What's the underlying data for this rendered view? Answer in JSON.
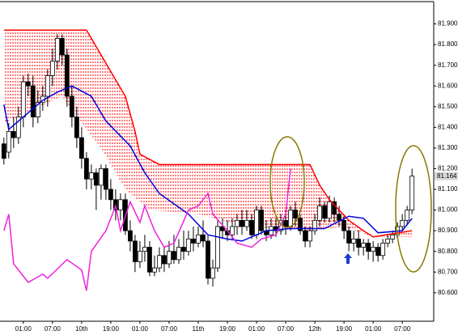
{
  "chart_data": {
    "type": "candlestick",
    "ylim": [
      80.47,
      82.0
    ],
    "yticks": [
      {
        "value": 80.6,
        "label": "80.600"
      },
      {
        "value": 80.7,
        "label": "80.700"
      },
      {
        "value": 80.8,
        "label": "80.800"
      },
      {
        "value": 80.9,
        "label": "80.900"
      },
      {
        "value": 81.0,
        "label": "81.000"
      },
      {
        "value": 81.1,
        "label": "81.100"
      },
      {
        "value": 81.2,
        "label": "81.200"
      },
      {
        "value": 81.3,
        "label": "81.300"
      },
      {
        "value": 81.4,
        "label": "81.400"
      },
      {
        "value": 81.5,
        "label": "81.500"
      },
      {
        "value": 81.6,
        "label": "81.600"
      },
      {
        "value": 81.7,
        "label": "81.700"
      },
      {
        "value": 81.8,
        "label": "81.800"
      },
      {
        "value": 81.9,
        "label": "81.900"
      }
    ],
    "xlim": [
      -0.8,
      88.3
    ],
    "xticks": [
      {
        "value": 4,
        "label": "01:00"
      },
      {
        "value": 10,
        "label": "07:00"
      },
      {
        "value": 16,
        "label": "10th"
      },
      {
        "value": 22,
        "label": "19:00"
      },
      {
        "value": 28,
        "label": "01:00"
      },
      {
        "value": 34,
        "label": "07:00"
      },
      {
        "value": 40,
        "label": "11th"
      },
      {
        "value": 46,
        "label": "19:00"
      },
      {
        "value": 52,
        "label": "01:00"
      },
      {
        "value": 58,
        "label": "07:00"
      },
      {
        "value": 64,
        "label": "12th"
      },
      {
        "value": 70,
        "label": "19:00"
      },
      {
        "value": 76,
        "label": "01:00"
      },
      {
        "value": 82,
        "label": "07:00"
      }
    ],
    "up_color": "#ffffff",
    "down_color": "#000000",
    "open": [
      81.32,
      81.28,
      81.38,
      81.35,
      81.45,
      81.62,
      81.6,
      81.45,
      81.52,
      81.55,
      81.65,
      81.72,
      81.83,
      81.75,
      81.55,
      81.45,
      81.35,
      81.25,
      81.15,
      81.18,
      81.12,
      81.2,
      81.1,
      81.05,
      81.0,
      81.05,
      80.9,
      80.85,
      80.75,
      80.8,
      80.82,
      80.7,
      80.72,
      80.78,
      80.74,
      80.8,
      80.76,
      80.82,
      80.8,
      80.86,
      80.84,
      80.88,
      80.85,
      80.67,
      80.72,
      80.92,
      80.9,
      80.88,
      80.92,
      80.95,
      80.92,
      80.95,
      80.88,
      81.0,
      80.9,
      80.88,
      80.92,
      80.9,
      80.95,
      80.92,
      81.0,
      80.96,
      80.9,
      80.85,
      80.9,
      80.95,
      81.02,
      80.96,
      81.04,
      80.98,
      80.95,
      80.9,
      80.84,
      80.86,
      80.82,
      80.84,
      80.8,
      80.82,
      80.78,
      80.84,
      80.86,
      80.88,
      80.92,
      80.95,
      81.0
    ],
    "high": [
      81.35,
      81.42,
      81.45,
      81.5,
      81.65,
      81.66,
      81.65,
      81.58,
      81.6,
      81.68,
      81.78,
      81.85,
      81.85,
      81.78,
      81.6,
      81.5,
      81.4,
      81.28,
      81.22,
      81.2,
      81.22,
      81.22,
      81.15,
      81.1,
      81.08,
      81.08,
      80.95,
      80.88,
      80.85,
      80.88,
      80.85,
      80.78,
      80.82,
      80.82,
      80.85,
      80.88,
      80.86,
      80.9,
      80.9,
      80.92,
      80.92,
      80.95,
      80.88,
      80.76,
      80.95,
      80.96,
      80.95,
      80.96,
      80.98,
      81.0,
      81.0,
      80.98,
      81.02,
      81.02,
      80.95,
      80.96,
      80.96,
      80.98,
      81.0,
      81.02,
      81.04,
      80.98,
      80.92,
      80.92,
      80.98,
      81.06,
      81.04,
      81.07,
      81.06,
      81.02,
      80.98,
      80.92,
      80.9,
      80.9,
      80.86,
      80.86,
      80.85,
      80.84,
      80.86,
      80.88,
      80.9,
      80.94,
      80.98,
      81.02,
      81.2
    ],
    "low": [
      81.22,
      81.25,
      81.3,
      81.32,
      81.4,
      81.55,
      81.4,
      81.42,
      81.48,
      81.5,
      81.6,
      81.68,
      81.7,
      81.5,
      81.4,
      81.3,
      81.2,
      81.1,
      81.1,
      81.0,
      81.05,
      81.05,
      81.0,
      80.95,
      80.95,
      80.88,
      80.8,
      80.7,
      80.72,
      80.75,
      80.68,
      80.68,
      80.7,
      80.7,
      80.72,
      80.74,
      80.74,
      80.76,
      80.78,
      80.8,
      80.82,
      80.82,
      80.64,
      80.63,
      80.7,
      80.86,
      80.85,
      80.86,
      80.88,
      80.88,
      80.9,
      80.86,
      80.86,
      80.88,
      80.85,
      80.86,
      80.87,
      80.88,
      80.88,
      80.9,
      80.92,
      80.88,
      80.82,
      80.82,
      80.88,
      80.92,
      80.94,
      80.94,
      80.94,
      80.92,
      80.86,
      80.8,
      80.8,
      80.78,
      80.78,
      80.76,
      80.75,
      80.75,
      80.76,
      80.82,
      80.84,
      80.86,
      80.9,
      80.93,
      80.98
    ],
    "close": [
      81.25,
      81.38,
      81.35,
      81.45,
      81.62,
      81.6,
      81.45,
      81.52,
      81.55,
      81.65,
      81.72,
      81.83,
      81.75,
      81.55,
      81.45,
      81.35,
      81.25,
      81.15,
      81.18,
      81.12,
      81.2,
      81.1,
      81.05,
      81.0,
      81.05,
      80.9,
      80.85,
      80.75,
      80.8,
      80.82,
      80.7,
      80.72,
      80.78,
      80.74,
      80.8,
      80.76,
      80.82,
      80.8,
      80.86,
      80.84,
      80.88,
      80.85,
      80.67,
      80.72,
      80.92,
      80.9,
      80.88,
      80.92,
      80.95,
      80.92,
      80.95,
      80.88,
      81.0,
      80.9,
      80.88,
      80.92,
      80.9,
      80.95,
      80.92,
      81.0,
      80.96,
      80.9,
      80.85,
      80.9,
      80.95,
      81.02,
      80.96,
      81.04,
      80.98,
      80.95,
      80.9,
      80.84,
      80.86,
      80.82,
      80.84,
      80.8,
      80.82,
      80.78,
      80.84,
      80.86,
      80.88,
      80.92,
      80.95,
      81.0,
      81.164
    ],
    "price_tag": "81.164",
    "lines": [
      {
        "color": "#ff0000",
        "x": [
          0,
          17,
          20,
          22,
          25,
          27,
          28,
          32,
          63,
          65,
          67,
          69,
          71,
          74,
          76,
          84
        ],
        "values": [
          81.87,
          81.87,
          81.75,
          81.67,
          81.55,
          81.38,
          81.27,
          81.22,
          81.22,
          81.12,
          81.05,
          81.0,
          80.95,
          80.9,
          80.87,
          80.9
        ]
      },
      {
        "color": "#0000dd",
        "x": [
          0,
          1,
          3,
          8,
          11,
          14,
          18,
          21,
          26,
          29,
          32,
          38,
          42,
          46,
          49,
          54,
          59,
          66,
          71,
          74,
          77,
          82,
          84
        ],
        "values": [
          81.51,
          81.39,
          81.43,
          81.53,
          81.57,
          81.6,
          81.55,
          81.43,
          81.31,
          81.18,
          81.08,
          80.98,
          80.88,
          80.86,
          80.85,
          80.9,
          80.91,
          80.91,
          80.97,
          80.96,
          80.89,
          80.9,
          80.96
        ]
      },
      {
        "color": "#ee22dd",
        "x": [
          0,
          1,
          2,
          5,
          8,
          9,
          13,
          16,
          17,
          18,
          21,
          23,
          24,
          26,
          28,
          29,
          31,
          33,
          35,
          38,
          40,
          42,
          43,
          46,
          48,
          51,
          53,
          56,
          58,
          59
        ],
        "values": [
          80.9,
          80.98,
          80.74,
          80.65,
          80.69,
          80.67,
          80.76,
          80.71,
          80.61,
          80.8,
          80.9,
          81.02,
          80.9,
          81.04,
          80.94,
          81.02,
          80.9,
          80.82,
          80.84,
          81.0,
          81.02,
          81.08,
          80.98,
          80.9,
          80.84,
          80.82,
          80.86,
          80.88,
          80.98,
          81.2
        ]
      }
    ],
    "cloud_lower": {
      "color": "#ff0000",
      "x": [
        0,
        12,
        20,
        25,
        30,
        40,
        50,
        63,
        70,
        76,
        84
      ],
      "values": [
        81.42,
        81.55,
        81.3,
        81.1,
        81.0,
        80.98,
        80.92,
        80.9,
        80.92,
        80.87,
        80.87
      ]
    }
  }
}
